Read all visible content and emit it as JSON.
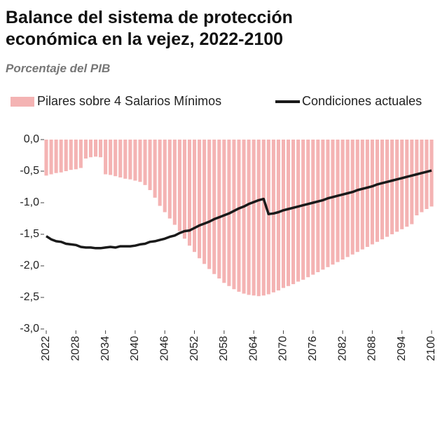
{
  "chart_data": {
    "type": "bar-line",
    "title": "Balance del sistema de protección económica en la vejez, 2022-2100",
    "subtitle": "Porcentaje del PIB",
    "x": [
      2022,
      2023,
      2024,
      2025,
      2026,
      2027,
      2028,
      2029,
      2030,
      2031,
      2032,
      2033,
      2034,
      2035,
      2036,
      2037,
      2038,
      2039,
      2040,
      2041,
      2042,
      2043,
      2044,
      2045,
      2046,
      2047,
      2048,
      2049,
      2050,
      2051,
      2052,
      2053,
      2054,
      2055,
      2056,
      2057,
      2058,
      2059,
      2060,
      2061,
      2062,
      2063,
      2064,
      2065,
      2066,
      2067,
      2068,
      2069,
      2070,
      2071,
      2072,
      2073,
      2074,
      2075,
      2076,
      2077,
      2078,
      2079,
      2080,
      2081,
      2082,
      2083,
      2084,
      2085,
      2086,
      2087,
      2088,
      2089,
      2090,
      2091,
      2092,
      2093,
      2094,
      2095,
      2096,
      2097,
      2098,
      2099,
      2100
    ],
    "series": [
      {
        "name": "Pilares sobre 4 Salarios Mínimos",
        "type": "bar",
        "color": "#f4b3b3",
        "values": [
          -0.57,
          -0.55,
          -0.53,
          -0.52,
          -0.5,
          -0.48,
          -0.47,
          -0.45,
          -0.3,
          -0.28,
          -0.27,
          -0.28,
          -0.55,
          -0.56,
          -0.58,
          -0.6,
          -0.62,
          -0.63,
          -0.65,
          -0.67,
          -0.72,
          -0.8,
          -0.92,
          -1.05,
          -1.15,
          -1.25,
          -1.35,
          -1.45,
          -1.57,
          -1.68,
          -1.78,
          -1.88,
          -1.97,
          -2.05,
          -2.13,
          -2.2,
          -2.27,
          -2.32,
          -2.37,
          -2.41,
          -2.44,
          -2.46,
          -2.47,
          -2.48,
          -2.47,
          -2.45,
          -2.42,
          -2.39,
          -2.35,
          -2.32,
          -2.29,
          -2.25,
          -2.22,
          -2.18,
          -2.14,
          -2.1,
          -2.06,
          -2.02,
          -1.98,
          -1.94,
          -1.9,
          -1.86,
          -1.82,
          -1.78,
          -1.74,
          -1.7,
          -1.66,
          -1.62,
          -1.58,
          -1.54,
          -1.5,
          -1.46,
          -1.42,
          -1.38,
          -1.34,
          -1.2,
          -1.15,
          -1.1,
          -1.06
        ]
      },
      {
        "name": "Condiciones actuales",
        "type": "line",
        "color": "#1a1a1a",
        "values": [
          -1.53,
          -1.58,
          -1.61,
          -1.62,
          -1.65,
          -1.66,
          -1.67,
          -1.7,
          -1.71,
          -1.71,
          -1.72,
          -1.72,
          -1.71,
          -1.7,
          -1.71,
          -1.69,
          -1.69,
          -1.69,
          -1.68,
          -1.66,
          -1.65,
          -1.62,
          -1.61,
          -1.59,
          -1.57,
          -1.54,
          -1.52,
          -1.48,
          -1.45,
          -1.44,
          -1.4,
          -1.36,
          -1.33,
          -1.3,
          -1.26,
          -1.23,
          -1.2,
          -1.17,
          -1.13,
          -1.09,
          -1.06,
          -1.02,
          -0.99,
          -0.96,
          -0.94,
          -1.18,
          -1.17,
          -1.15,
          -1.12,
          -1.1,
          -1.08,
          -1.06,
          -1.04,
          -1.02,
          -1.0,
          -0.98,
          -0.96,
          -0.93,
          -0.91,
          -0.89,
          -0.87,
          -0.85,
          -0.83,
          -0.8,
          -0.78,
          -0.76,
          -0.74,
          -0.71,
          -0.69,
          -0.67,
          -0.65,
          -0.63,
          -0.61,
          -0.59,
          -0.57,
          -0.55,
          -0.53,
          -0.51,
          -0.49
        ]
      }
    ],
    "xlim": [
      2022,
      2100
    ],
    "xticks": [
      2022,
      2028,
      2034,
      2040,
      2046,
      2052,
      2058,
      2064,
      2070,
      2076,
      2082,
      2088,
      2094,
      2100
    ],
    "ylim": [
      -3,
      0
    ],
    "yticks": [
      {
        "value": 0,
        "label": "0,0"
      },
      {
        "value": -0.5,
        "label": "-0,5"
      },
      {
        "value": -1,
        "label": "-1,0"
      },
      {
        "value": -1.5,
        "label": "-1,5"
      },
      {
        "value": -2,
        "label": "-2,0"
      },
      {
        "value": -2.5,
        "label": "-2,5"
      },
      {
        "value": -3,
        "label": "-3,0"
      }
    ],
    "grid": false,
    "legend": "top"
  }
}
